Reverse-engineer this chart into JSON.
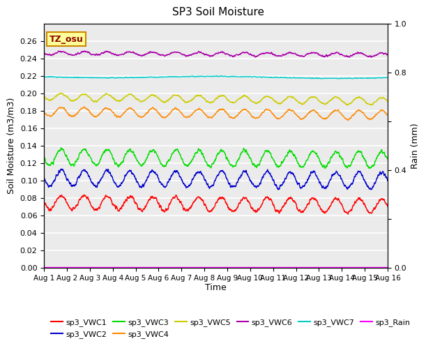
{
  "title": "SP3 Soil Moisture",
  "xlabel": "Time",
  "ylabel_left": "Soil Moisture (m3/m3)",
  "ylabel_right": "Rain (mm)",
  "ylim_left": [
    0.0,
    0.28
  ],
  "ylim_right": [
    0.0,
    1.0
  ],
  "num_points": 2000,
  "annotation_text": "TZ_osu",
  "annotation_bg": "#FFFF99",
  "annotation_border": "#CC8800",
  "plot_bg": "#EBEBEB",
  "fig_bg": "#FFFFFF",
  "series_order": [
    "sp3_VWC1",
    "sp3_VWC2",
    "sp3_VWC3",
    "sp3_VWC4",
    "sp3_VWC5",
    "sp3_VWC6",
    "sp3_VWC7",
    "sp3_Rain"
  ],
  "series": {
    "sp3_VWC1": {
      "color": "#FF0000",
      "base": 0.075,
      "amp": 0.008,
      "freq": 1.0,
      "trend": -0.004,
      "noise": 0.002
    },
    "sp3_VWC2": {
      "color": "#0000CC",
      "base": 0.103,
      "amp": 0.009,
      "freq": 1.0,
      "trend": -0.003,
      "noise": 0.002
    },
    "sp3_VWC3": {
      "color": "#00DD00",
      "base": 0.127,
      "amp": 0.009,
      "freq": 1.0,
      "trend": -0.003,
      "noise": 0.002
    },
    "sp3_VWC4": {
      "color": "#FF8800",
      "base": 0.179,
      "amp": 0.005,
      "freq": 1.0,
      "trend": -0.004,
      "noise": 0.001
    },
    "sp3_VWC5": {
      "color": "#CCCC00",
      "base": 0.196,
      "amp": 0.004,
      "freq": 1.0,
      "trend": -0.005,
      "noise": 0.001
    },
    "sp3_VWC6": {
      "color": "#AA00AA",
      "base": 0.246,
      "amp": 0.002,
      "freq": 1.0,
      "trend": -0.002,
      "noise": 0.001
    },
    "sp3_VWC7": {
      "color": "#00CCCC",
      "base": 0.219,
      "amp": 0.001,
      "freq": 0.1,
      "trend": -0.001,
      "noise": 0.0005
    },
    "sp3_Rain": {
      "color": "#FF00FF",
      "base": 0.0005,
      "amp": 0.0,
      "freq": 0.0,
      "trend": 0.0,
      "noise": 0.0
    }
  },
  "xtick_labels": [
    "Aug 1",
    "Aug 2",
    "Aug 3",
    "Aug 4",
    "Aug 5",
    "Aug 6",
    "Aug 7",
    "Aug 8",
    "Aug 9",
    "Aug 10",
    "Aug 11",
    "Aug 12",
    "Aug 13",
    "Aug 14",
    "Aug 15",
    "Aug 16"
  ],
  "ytick_left": [
    0.0,
    0.02,
    0.04,
    0.06,
    0.08,
    0.1,
    0.12,
    0.14,
    0.16,
    0.18,
    0.2,
    0.22,
    0.24,
    0.26
  ],
  "ytick_right": [
    0.0,
    0.2,
    0.4,
    0.6,
    0.8,
    1.0
  ],
  "right_tick_labels": [
    "0.0",
    "",
    "0.4",
    "",
    "0.8",
    "1.0"
  ]
}
